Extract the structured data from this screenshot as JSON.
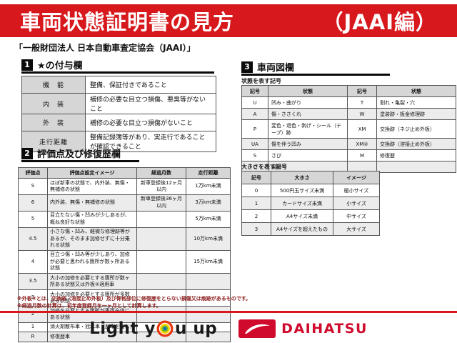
{
  "banner": {
    "title": "車両状態証明書の見方",
    "edition": "（JAAI編）"
  },
  "org_line": "「一般財団法人 日本自動車査定協会（JAAI）」",
  "section1": {
    "number": "1",
    "title": "★の付与欄",
    "rows": [
      [
        "機　能",
        "整備、保証付きであること"
      ],
      [
        "内　装",
        "補修の必要な目立つ損傷、悪臭等がないこと"
      ],
      [
        "外　装",
        "補修の必要な目立つ損傷がないこと"
      ],
      [
        "走行距離",
        "整備記録簿等があり、実走行であることが確認できること"
      ]
    ]
  },
  "section2": {
    "number": "2",
    "title": "評価点及び修復歴欄",
    "headers": [
      "評価点",
      "評価点設定イメージ",
      "経過月数",
      "走行距離"
    ],
    "rows": [
      [
        "S",
        "ほぼ新車の状態で、内外装、無傷・無補修の状態",
        "新車登録後12ヶ月以内",
        "1万km未満"
      ],
      [
        "6",
        "内外装、無傷・無補修の状態",
        "新車登録後36ヶ月以内",
        "3万km未満"
      ],
      [
        "5",
        "目立たない傷・凹みが少しあるが、概ね良好な状態",
        "",
        "5万km未満"
      ],
      [
        "4.5",
        "小さな傷・凹み、軽微な修理跡等があるが、そのまま加修せずに十分乗れる状態",
        "",
        "10万km未満"
      ],
      [
        "4",
        "目立つ傷・凹み等が少しあり、加修が必要と思われる箇所が数ヶ所ある状態",
        "",
        "15万km未満"
      ],
      [
        "3.5",
        "大小の加修を必要とする箇所が数ヶ所ある状態又は外板②適用車",
        "",
        ""
      ],
      [
        "3",
        "大小の加修を必要とする箇所が多数ある状態",
        "",
        ""
      ],
      [
        "2",
        "加修を必要とする箇所が車両全体にある状態",
        "",
        ""
      ],
      [
        "1",
        "消火剤散布車・冠水車（歴車を含む）",
        "",
        ""
      ],
      [
        "R",
        "修復歴車",
        "",
        ""
      ]
    ]
  },
  "section3": {
    "number": "3",
    "title": "車両図欄",
    "state_table": {
      "caption": "状態を表す記号",
      "headers": [
        "記号",
        "状態",
        "記号",
        "状態"
      ],
      "rows": [
        [
          "U",
          "凹み・曲がり",
          "T",
          "割れ・亀裂・穴"
        ],
        [
          "A",
          "傷・ささくれ",
          "W",
          "塗装跡・板金修理跡"
        ],
        [
          "P",
          "変色・退色・剥げ・シール（テープ）跡",
          "XM",
          "交換跡（ネジ止め外板）"
        ],
        [
          "UA",
          "傷を伴う凹み",
          "XM②",
          "交換跡（溶接止め外板）"
        ],
        [
          "S",
          "さび",
          "M",
          "修復歴"
        ],
        [
          "C",
          "腐食",
          "",
          ""
        ]
      ]
    },
    "size_table": {
      "caption": "大きさを表す記号",
      "headers": [
        "記号",
        "大きさ",
        "イメージ"
      ],
      "rows": [
        [
          "0",
          "500円玉サイズ未満",
          "極小サイズ"
        ],
        [
          "1",
          "カードサイズ未満",
          "小サイズ"
        ],
        [
          "2",
          "A4サイズ未満",
          "中サイズ"
        ],
        [
          "3",
          "A4サイズを超えたもの",
          "大サイズ"
        ]
      ]
    }
  },
  "footnotes": [
    "※外板②とは、交換跡（溶接止め外板）及び骨格部位に修復歴をとらない損傷又は痕跡があるものです。",
    "※経過月数の計算は、初年度登録月を一ヶ月として計算します。"
  ],
  "footer": {
    "slogan": "Light you up",
    "slogan_left": "Light y",
    "slogan_right": "u up",
    "brand": "DAIHATSU"
  },
  "colors": {
    "banner_red": "#d7181c",
    "brand_red": "#cf0a2c",
    "note_red": "#8a1a1a",
    "header_gray": "#d6d6d6",
    "stripe_gray": "#ececec",
    "target_outer": "#e8380d",
    "target_yellow": "#ffd400",
    "target_green": "#6fb92c",
    "target_core": "#0a6fb8"
  }
}
